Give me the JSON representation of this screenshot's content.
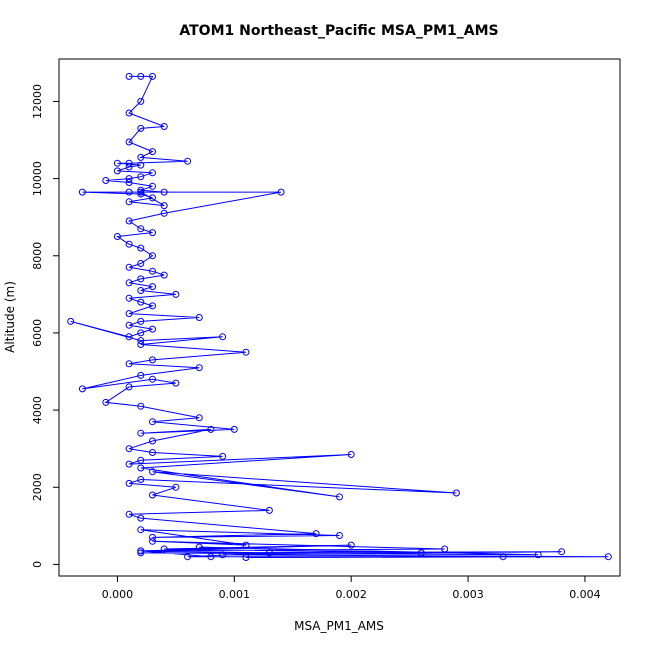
{
  "chart_data": {
    "type": "line",
    "title": "ATOM1 Northeast_Pacific MSA_PM1_AMS",
    "xlabel": "MSA_PM1_AMS",
    "ylabel": "Altitude (m)",
    "xlim": [
      -0.0005,
      0.0043
    ],
    "ylim": [
      -300,
      13100
    ],
    "x_ticks": [
      {
        "value": 0.0,
        "label": "0.000"
      },
      {
        "value": 0.001,
        "label": "0.001"
      },
      {
        "value": 0.002,
        "label": "0.002"
      },
      {
        "value": 0.003,
        "label": "0.003"
      },
      {
        "value": 0.004,
        "label": "0.004"
      }
    ],
    "y_ticks": [
      {
        "value": 0,
        "label": "0"
      },
      {
        "value": 2000,
        "label": "2000"
      },
      {
        "value": 4000,
        "label": "4000"
      },
      {
        "value": 6000,
        "label": "6000"
      },
      {
        "value": 8000,
        "label": "8000"
      },
      {
        "value": 10000,
        "label": "10000"
      },
      {
        "value": 12000,
        "label": "12000"
      }
    ],
    "series_color": "#0000ff",
    "marker": "open-circle",
    "grid": false,
    "series": [
      {
        "x": [
          0.0001,
          0.0002,
          0.0003,
          0.0002,
          0.0001,
          0.0004,
          0.0002,
          0.0001,
          0.0003,
          0.0002,
          0.0006,
          0.0001,
          0.0,
          0.0002,
          0.0001,
          0.0,
          0.0003,
          0.0002,
          0.0001,
          -0.0001,
          0.0001,
          0.0003,
          0.0002,
          0.0004,
          0.0001,
          -0.0003,
          0.0002,
          0.0003,
          0.0001,
          0.0004,
          0.0002,
          0.0014,
          0.0004,
          0.0001,
          0.0002,
          0.0003,
          0.0,
          0.0001,
          0.0002,
          0.0003,
          0.0002,
          0.0001,
          0.0003,
          0.0004,
          0.0002,
          0.0001,
          0.0003,
          0.0002,
          0.0005,
          0.0001,
          0.0002,
          0.0003,
          0.0001,
          0.0007,
          0.0002,
          0.0001,
          0.0003,
          0.0002,
          0.0001,
          -0.0004,
          0.0002,
          0.0009,
          0.0002,
          0.0011,
          0.0003,
          0.0001,
          0.0007,
          0.0002,
          -0.0003,
          0.0003,
          0.0005,
          0.0001,
          -0.0001,
          0.0002,
          0.0007,
          0.0003,
          0.001,
          0.0002,
          0.0008,
          0.0003,
          0.0001,
          0.0003,
          0.0009,
          0.0002,
          0.0001,
          0.002,
          0.0002,
          0.0019,
          0.0003,
          0.0029,
          0.0002,
          0.0001,
          0.0005,
          0.0003,
          0.0013,
          0.0001,
          0.0002,
          0.0017,
          0.0003,
          0.0019,
          0.0002,
          0.0011,
          0.0003,
          0.0028,
          0.0002,
          0.002,
          0.0004,
          0.0026,
          0.0007,
          0.0036,
          0.0002,
          0.0038,
          0.0009,
          0.0042,
          0.0011,
          0.0033,
          0.0006,
          0.0013,
          0.0002,
          0.0008
        ],
        "y": [
          12650,
          12650,
          12650,
          12000,
          11700,
          11350,
          11300,
          10950,
          10700,
          10550,
          10450,
          10400,
          10400,
          10350,
          10300,
          10200,
          10150,
          10050,
          10000,
          9950,
          9900,
          9800,
          9700,
          9650,
          9650,
          9650,
          9600,
          9500,
          9400,
          9300,
          9650,
          9650,
          9100,
          8900,
          8700,
          8600,
          8500,
          8300,
          8200,
          8000,
          7800,
          7700,
          7600,
          7500,
          7400,
          7300,
          7200,
          7100,
          7000,
          6900,
          6800,
          6700,
          6500,
          6400,
          6300,
          6200,
          6100,
          6000,
          5900,
          6300,
          5800,
          5900,
          5700,
          5500,
          5300,
          5200,
          5100,
          4900,
          4550,
          4800,
          4700,
          4600,
          4200,
          4100,
          3800,
          3700,
          3500,
          3400,
          3500,
          3200,
          3000,
          2900,
          2800,
          2700,
          2600,
          2850,
          2500,
          1750,
          2400,
          1850,
          2200,
          2100,
          2000,
          1800,
          1400,
          1300,
          1200,
          800,
          700,
          750,
          900,
          500,
          600,
          400,
          350,
          500,
          400,
          300,
          450,
          250,
          300,
          330,
          250,
          200,
          180,
          200,
          200,
          300,
          350,
          200
        ]
      }
    ]
  }
}
